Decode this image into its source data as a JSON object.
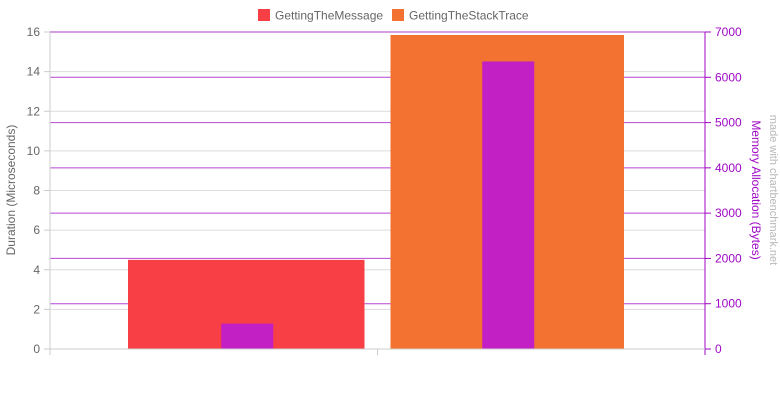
{
  "chart_data": {
    "type": "bar",
    "categories": [
      "",
      ""
    ],
    "series": [
      {
        "name": "GettingTheMessage",
        "axis": "left",
        "values": [
          4.5,
          null
        ],
        "color": "#f93f46"
      },
      {
        "name": "GettingTheStackTrace",
        "axis": "left",
        "values": [
          null,
          15.85
        ],
        "color": "#f37231"
      },
      {
        "name": "",
        "axis": "right",
        "values": [
          560,
          6350
        ],
        "color": "#c21fc4"
      }
    ],
    "y_left": {
      "label": "Duration (Microseconds)",
      "ylim": [
        0,
        16
      ],
      "ticks": [
        "0",
        "2",
        "4",
        "6",
        "8",
        "10",
        "12",
        "14",
        "16"
      ]
    },
    "y_right": {
      "label": "Memory Allocation (Bytes)",
      "ylim": [
        0,
        7000
      ],
      "ticks": [
        "0",
        "1000",
        "2000",
        "3000",
        "4000",
        "5000",
        "6000",
        "7000"
      ],
      "color": "#9f08c4"
    },
    "grid": true,
    "legend": "top-center",
    "watermark": "made with chartbenchmark.net"
  }
}
